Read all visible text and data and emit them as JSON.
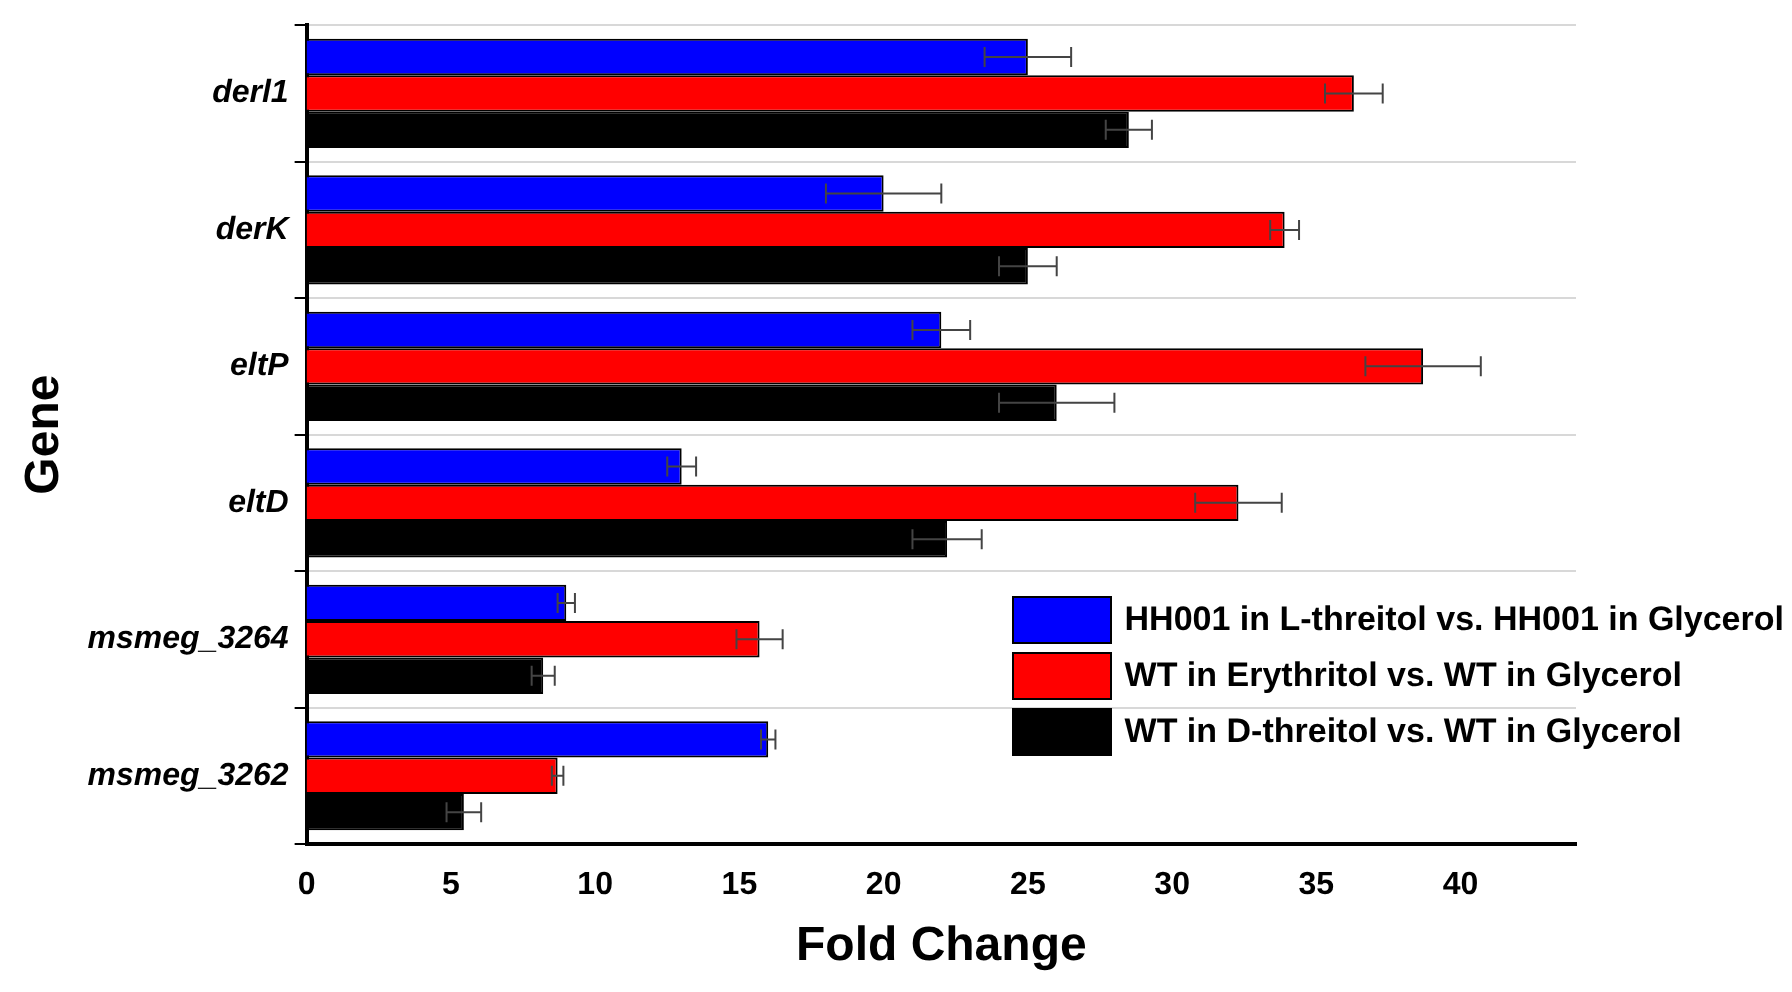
{
  "chart_data": {
    "type": "bar",
    "orientation": "horizontal",
    "xlabel": "Fold Change",
    "ylabel": "Gene",
    "categories": [
      "derl1",
      "derK",
      "eltP",
      "eltD",
      "msmeg_3264",
      "msmeg_3262"
    ],
    "series": [
      {
        "name": "HH001 in L-threitol vs. HH001 in Glycerol",
        "color": "#0000ff",
        "values": [
          25,
          20,
          22,
          13,
          9,
          16
        ],
        "errors": [
          1.5,
          2,
          1,
          0.5,
          0.3,
          0.25
        ]
      },
      {
        "name": "WT in Erythritol vs. WT in Glycerol",
        "color": "#ff0000",
        "values": [
          36.3,
          33.9,
          38.7,
          32.3,
          15.7,
          8.7
        ],
        "errors": [
          1,
          0.5,
          2,
          1.5,
          0.8,
          0.2
        ]
      },
      {
        "name": "WT in D-threitol vs. WT in Glycerol",
        "color": "#000000",
        "values": [
          28.5,
          25,
          26,
          22.2,
          8.2,
          5.45
        ],
        "errors": [
          0.8,
          1,
          2,
          1.2,
          0.4,
          0.6
        ]
      }
    ],
    "xlim": [
      0,
      44
    ],
    "xticks": [
      0,
      5,
      10,
      15,
      20,
      25,
      30,
      35,
      40
    ],
    "grid": "y",
    "legend": "bottom right"
  }
}
